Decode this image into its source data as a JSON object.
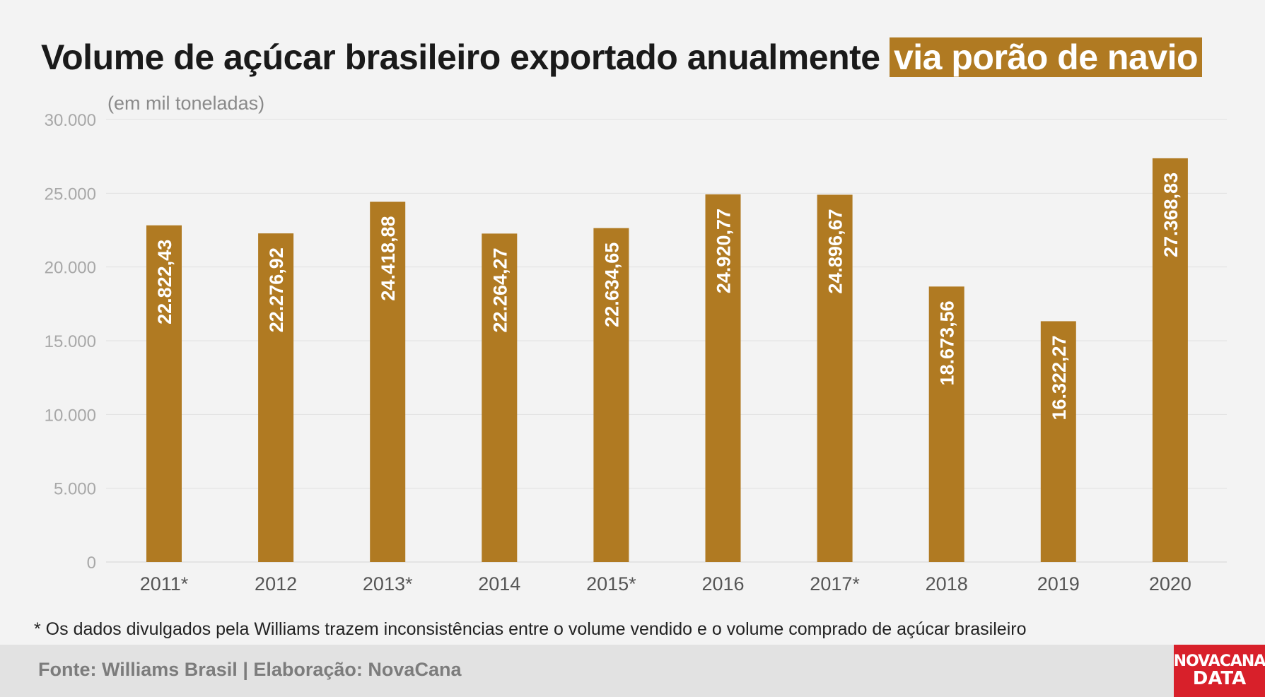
{
  "title_main": "Volume de açúcar brasileiro exportado anualmente",
  "title_highlight": "via porão de navio",
  "subtitle": "(em mil toneladas)",
  "footnote": "* Os dados divulgados pela Williams trazem inconsistências entre o volume vendido e o volume comprado de açúcar brasileiro",
  "source": "Fonte: Williams Brasil | Elaboração: NovaCana",
  "logo": {
    "line1": "NOVACANA",
    "line2": "DATA"
  },
  "colors": {
    "bar": "#b07a22",
    "highlight": "#b07a22",
    "logo": "#d8202a",
    "axis_text": "#a8a8a8",
    "grid": "#e0e0e0"
  },
  "chart_data": {
    "type": "bar",
    "title": "Volume de açúcar brasileiro exportado anualmente via porão de navio",
    "ylabel": "(em mil toneladas)",
    "xlabel": "",
    "categories": [
      "2011*",
      "2012",
      "2013*",
      "2014",
      "2015*",
      "2016",
      "2017*",
      "2018",
      "2019",
      "2020"
    ],
    "values": [
      22822.43,
      22276.92,
      24418.88,
      22264.27,
      22634.65,
      24920.77,
      24896.67,
      18673.56,
      16322.27,
      27368.83
    ],
    "value_labels": [
      "22.822,43",
      "22.276,92",
      "24.418,88",
      "22.264,27",
      "22.634,65",
      "24.920,77",
      "24.896,67",
      "18.673,56",
      "16.322,27",
      "27.368,83"
    ],
    "ylim": [
      0,
      30000
    ],
    "yticks": [
      0,
      5000,
      10000,
      15000,
      20000,
      25000,
      30000
    ],
    "ytick_labels": [
      "0",
      "5.000",
      "10.000",
      "15.000",
      "20.000",
      "25.000",
      "30.000"
    ],
    "grid": true,
    "legend": "none"
  }
}
